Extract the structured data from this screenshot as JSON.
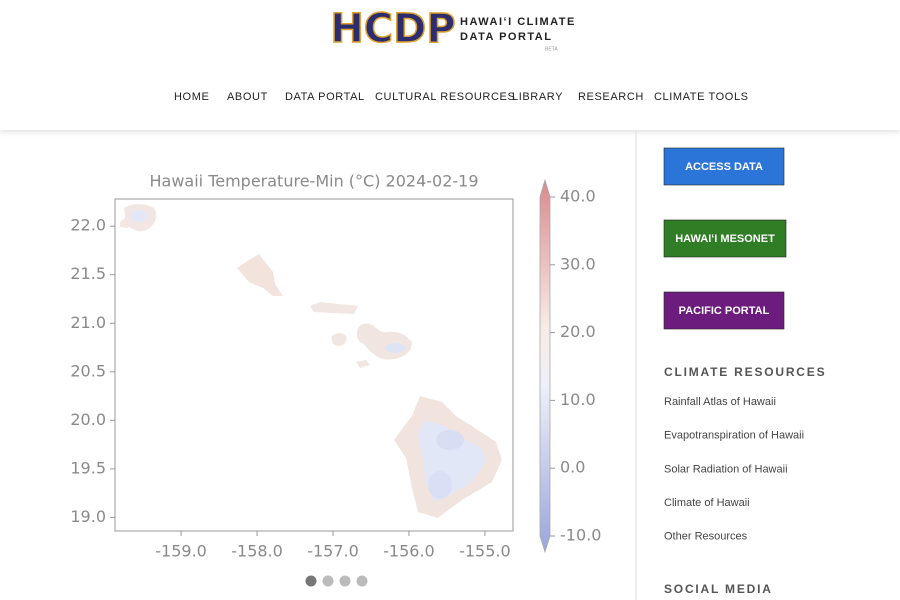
{
  "header": {
    "logo": "HCDP",
    "title_line1": "HAWAIʻI CLIMATE",
    "title_line2": "DATA PORTAL",
    "badge": "BETA"
  },
  "nav": [
    "HOME",
    "ABOUT",
    "DATA PORTAL",
    "CULTURAL RESOURCES",
    "LIBRARY",
    "RESEARCH",
    "CLIMATE TOOLS"
  ],
  "figure": {
    "title": "Hawaii Temperature-Min (°C)  2024-02-19",
    "xlim": [
      -159.87,
      -154.63
    ],
    "xticks": [
      {
        "value": -159,
        "label": "-159.0"
      },
      {
        "value": -158,
        "label": "-158.0"
      },
      {
        "value": -157,
        "label": "-157.0"
      },
      {
        "value": -156,
        "label": "-156.0"
      },
      {
        "value": -155,
        "label": "-155.0"
      }
    ],
    "ylim": [
      18.86,
      22.28
    ],
    "yticks": [
      {
        "value": 19,
        "label": "19.0"
      },
      19.5,
      20.5,
      {
        "value": 20,
        "label": "20.0"
      },
      {
        "value": 21,
        "label": "21.0"
      },
      21.5,
      {
        "value": 22,
        "label": "22.0"
      }
    ],
    "colorbar": {
      "lim": [
        -10,
        40
      ],
      "ticks": [
        {
          "value": -10,
          "label": "-10.0"
        },
        {
          "value": 0,
          "label": "0.0"
        },
        {
          "value": 10,
          "label": "10.0"
        },
        {
          "value": 20,
          "label": "20.0"
        },
        {
          "value": 30,
          "label": "30.0"
        },
        {
          "value": 40,
          "label": "40.0"
        }
      ]
    }
  },
  "sidebar": {
    "buttons": [
      {
        "label": "ACCESS DATA",
        "color": "#2b74d8"
      },
      {
        "label": "HAWAIʻI MESONET",
        "color": "#2f7d24"
      },
      {
        "label": "PACIFIC PORTAL",
        "color": "#6b1c7c"
      }
    ],
    "resources_heading": "CLIMATE RESOURCES",
    "resources": [
      "Rainfall Atlas of Hawaii",
      "Evapotranspiration of Hawaii",
      "Solar Radiation of Hawaii",
      "Climate of Hawaii",
      "Other Resources"
    ],
    "social_heading": "SOCIAL MEDIA"
  }
}
